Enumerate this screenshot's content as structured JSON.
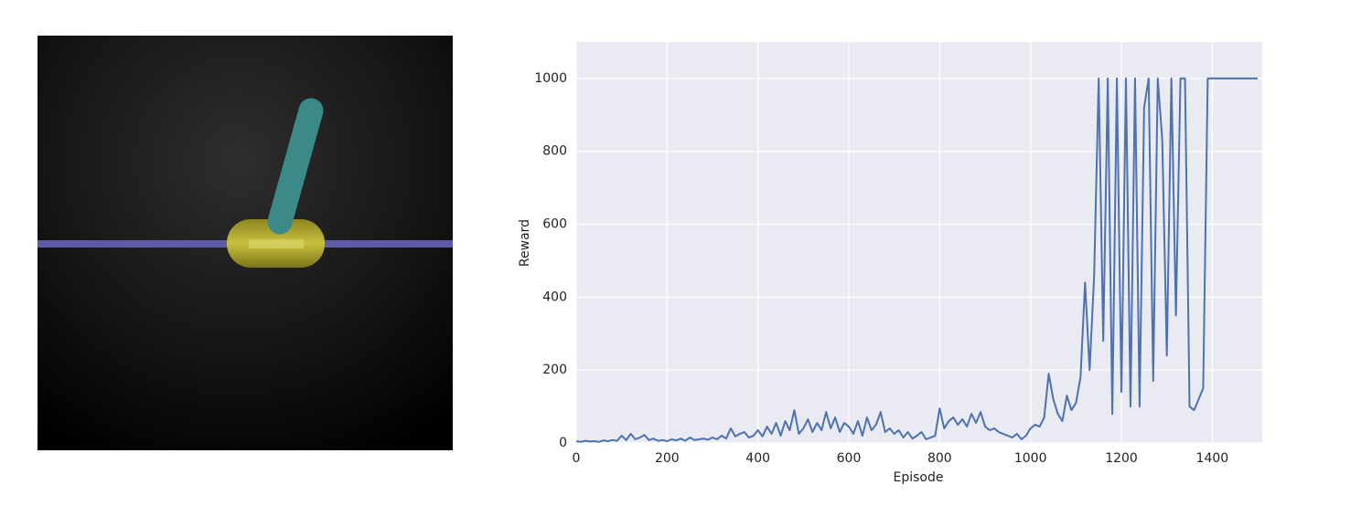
{
  "chart_data": {
    "type": "line",
    "xlabel": "Episode",
    "ylabel": "Reward",
    "color": "#4c72b0",
    "grid": true,
    "xlim": [
      0,
      1510
    ],
    "ylim": [
      0,
      1100
    ],
    "xticks": [
      0,
      200,
      400,
      600,
      800,
      1000,
      1200,
      1400
    ],
    "yticks": [
      0,
      200,
      400,
      600,
      800,
      1000
    ],
    "x": [
      0,
      10,
      20,
      30,
      40,
      50,
      60,
      70,
      80,
      90,
      100,
      110,
      120,
      130,
      140,
      150,
      160,
      170,
      180,
      190,
      200,
      210,
      220,
      230,
      240,
      250,
      260,
      270,
      280,
      290,
      300,
      310,
      320,
      330,
      340,
      350,
      360,
      370,
      380,
      390,
      400,
      410,
      420,
      430,
      440,
      450,
      460,
      470,
      480,
      490,
      500,
      510,
      520,
      530,
      540,
      550,
      560,
      570,
      580,
      590,
      600,
      610,
      620,
      630,
      640,
      650,
      660,
      670,
      680,
      690,
      700,
      710,
      720,
      730,
      740,
      750,
      760,
      770,
      780,
      790,
      800,
      810,
      820,
      830,
      840,
      850,
      860,
      870,
      880,
      890,
      900,
      910,
      920,
      930,
      940,
      950,
      960,
      970,
      980,
      990,
      1000,
      1010,
      1020,
      1030,
      1040,
      1050,
      1060,
      1070,
      1080,
      1090,
      1100,
      1110,
      1120,
      1130,
      1140,
      1150,
      1160,
      1170,
      1180,
      1190,
      1200,
      1210,
      1220,
      1230,
      1240,
      1250,
      1260,
      1270,
      1280,
      1290,
      1300,
      1310,
      1320,
      1330,
      1340,
      1350,
      1360,
      1370,
      1380,
      1390,
      1400,
      1410,
      1420,
      1430,
      1440,
      1450,
      1460,
      1470,
      1480,
      1490,
      1500
    ],
    "values": [
      5,
      3,
      6,
      4,
      5,
      3,
      7,
      5,
      8,
      6,
      20,
      8,
      25,
      10,
      15,
      22,
      8,
      12,
      6,
      8,
      5,
      10,
      7,
      12,
      6,
      15,
      8,
      10,
      12,
      9,
      15,
      10,
      20,
      12,
      40,
      18,
      25,
      30,
      15,
      20,
      35,
      18,
      45,
      25,
      55,
      20,
      60,
      35,
      90,
      25,
      40,
      65,
      30,
      55,
      35,
      85,
      40,
      70,
      30,
      55,
      45,
      25,
      60,
      20,
      70,
      35,
      50,
      85,
      30,
      40,
      25,
      35,
      15,
      30,
      12,
      20,
      30,
      10,
      15,
      20,
      95,
      40,
      60,
      70,
      50,
      65,
      45,
      80,
      55,
      85,
      45,
      35,
      40,
      30,
      25,
      20,
      15,
      25,
      10,
      20,
      40,
      50,
      45,
      70,
      190,
      120,
      80,
      60,
      130,
      90,
      110,
      180,
      440,
      200,
      460,
      1000,
      280,
      1000,
      80,
      1000,
      140,
      1000,
      100,
      1000,
      100,
      920,
      1000,
      170,
      1000,
      830,
      240,
      1000,
      350,
      1000,
      1000,
      100,
      90,
      120,
      150,
      1000,
      1000,
      1000,
      1000,
      1000,
      1000,
      1000,
      1000,
      1000,
      1000,
      1000,
      1000
    ]
  }
}
